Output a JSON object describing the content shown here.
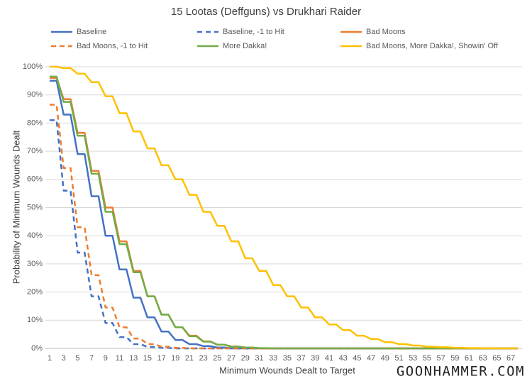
{
  "chart_data": {
    "type": "line",
    "title": "15 Lootas (Deffguns) vs Drukhari Raider",
    "x_label": "Minimum Wounds Dealt to Target",
    "y_label": "Probability of Minimum Wounds Dealt",
    "watermark": "GOONHAMMER.COM",
    "grid": true,
    "legend": "top",
    "categories": [
      "1",
      null,
      "3",
      null,
      "5",
      null,
      "7",
      null,
      "9",
      null,
      "11",
      null,
      "13",
      null,
      "15",
      null,
      "17",
      null,
      "19",
      null,
      "21",
      null,
      "23",
      null,
      "25",
      null,
      "27",
      null,
      "29",
      null,
      "31",
      null,
      "33",
      null,
      "35",
      null,
      "37",
      null,
      "39",
      null,
      "41",
      null,
      "43",
      null,
      "45",
      null,
      "47",
      null,
      "49",
      null,
      "51",
      null,
      "53",
      null,
      "55",
      null,
      "57",
      null,
      "59",
      null,
      "61",
      null,
      "63",
      null,
      "65",
      null,
      "67",
      null
    ],
    "ylim": [
      0,
      100
    ],
    "yticks": [
      {
        "value": 0,
        "label": "0%"
      },
      {
        "value": 10,
        "label": "10%"
      },
      {
        "value": 20,
        "label": "20%"
      },
      {
        "value": 30,
        "label": "30%"
      },
      {
        "value": 40,
        "label": "40%"
      },
      {
        "value": 50,
        "label": "50%"
      },
      {
        "value": 60,
        "label": "60%"
      },
      {
        "value": 70,
        "label": "70%"
      },
      {
        "value": 80,
        "label": "80%"
      },
      {
        "value": 90,
        "label": "90%"
      },
      {
        "value": 100,
        "label": "100%"
      }
    ],
    "series": [
      {
        "name": "Baseline",
        "color": "#4472c4",
        "dashed": false,
        "values": [
          95,
          95,
          83,
          83,
          69,
          69,
          54,
          54,
          40,
          40,
          28,
          28,
          18,
          18,
          11,
          11,
          6,
          6,
          3,
          3,
          1.5,
          1.5,
          0.8,
          0.8,
          0.3,
          0.3,
          0,
          0,
          0,
          0,
          0,
          0,
          0,
          0,
          0,
          0,
          0,
          0,
          0,
          0,
          0,
          0,
          0,
          0,
          0,
          0,
          0,
          0,
          0,
          0,
          0,
          0,
          0,
          0,
          0,
          0,
          0,
          0,
          0,
          0,
          0,
          0,
          0,
          0,
          0,
          0,
          0,
          0
        ]
      },
      {
        "name": "Baseline, -1 to Hit",
        "color": "#4472c4",
        "dashed": true,
        "values": [
          81,
          81,
          56,
          56,
          34,
          34,
          18.5,
          18.5,
          9,
          9,
          4,
          4,
          1.5,
          1.5,
          0.5,
          0.5,
          0.2,
          0.2,
          0,
          0,
          0,
          0,
          0,
          0,
          0,
          0,
          0,
          0,
          0,
          0,
          0,
          0,
          0,
          0,
          0,
          0,
          0,
          0,
          0,
          0,
          0,
          0,
          0,
          0,
          0,
          0,
          0,
          0,
          0,
          0,
          0,
          0,
          0,
          0,
          0,
          0,
          0,
          0,
          0,
          0,
          0,
          0,
          0,
          0,
          0,
          0,
          0,
          0
        ]
      },
      {
        "name": "Bad Moons",
        "color": "#ed7d31",
        "dashed": false,
        "values": [
          96,
          96,
          88.5,
          88.5,
          76.5,
          76.5,
          63,
          63,
          50,
          50,
          38,
          38,
          27.5,
          27.5,
          18.5,
          18.5,
          12,
          12,
          7.5,
          7.5,
          4.5,
          4.5,
          2.5,
          2.5,
          1.3,
          1.3,
          0.7,
          0.7,
          0.3,
          0.3,
          0,
          0,
          0,
          0,
          0,
          0,
          0,
          0,
          0,
          0,
          0,
          0,
          0,
          0,
          0,
          0,
          0,
          0,
          0,
          0,
          0,
          0,
          0,
          0,
          0,
          0,
          0,
          0,
          0,
          0,
          0,
          0,
          0,
          0,
          0,
          0,
          0,
          0
        ]
      },
      {
        "name": "Bad Moons, -1 to Hit",
        "color": "#ed7d31",
        "dashed": true,
        "values": [
          86.5,
          86.5,
          64,
          64,
          43,
          43,
          26,
          26,
          14.5,
          14.5,
          7.5,
          7.5,
          3.5,
          3.5,
          1.5,
          1.5,
          0.6,
          0.6,
          0.2,
          0.2,
          0,
          0,
          0,
          0,
          0,
          0,
          0,
          0,
          0,
          0,
          0,
          0,
          0,
          0,
          0,
          0,
          0,
          0,
          0,
          0,
          0,
          0,
          0,
          0,
          0,
          0,
          0,
          0,
          0,
          0,
          0,
          0,
          0,
          0,
          0,
          0,
          0,
          0,
          0,
          0,
          0,
          0,
          0,
          0,
          0,
          0,
          0,
          0
        ]
      },
      {
        "name": "More Dakka!",
        "color": "#70ad47",
        "dashed": false,
        "values": [
          96.5,
          96.5,
          87.5,
          87.5,
          75.5,
          75.5,
          62,
          62,
          48.5,
          48.5,
          37,
          37,
          27,
          27,
          18.5,
          18.5,
          12,
          12,
          7.5,
          7.5,
          4.3,
          4.3,
          2.4,
          2.4,
          1.3,
          1.3,
          0.6,
          0.6,
          0.3,
          0.3,
          0.1,
          0.1,
          0,
          0,
          0,
          0,
          0,
          0,
          0,
          0,
          0,
          0,
          0,
          0,
          0,
          0,
          0,
          0,
          0,
          0,
          0,
          0,
          0,
          0,
          0,
          0,
          0,
          0,
          0,
          0,
          0,
          0,
          0,
          0,
          0,
          0,
          0,
          0
        ]
      },
      {
        "name": "Bad Moons, More Dakka!, Showin' Off",
        "color": "#ffc000",
        "dashed": false,
        "values": [
          100,
          100,
          99.5,
          99.5,
          97.5,
          97.5,
          94.5,
          94.5,
          89.5,
          89.5,
          83.5,
          83.5,
          77,
          77,
          71,
          71,
          65,
          65,
          60,
          60,
          54.5,
          54.5,
          48.5,
          48.5,
          43.5,
          43.5,
          38,
          38,
          32,
          32,
          27.5,
          27.5,
          22.5,
          22.5,
          18.5,
          18.5,
          14.5,
          14.5,
          11,
          11,
          8.5,
          8.5,
          6.5,
          6.5,
          4.5,
          4.5,
          3.3,
          3.3,
          2.2,
          2.2,
          1.5,
          1.5,
          1,
          1,
          0.6,
          0.6,
          0.4,
          0.4,
          0.2,
          0.2,
          0.1,
          0.1,
          0.05,
          0.05,
          0,
          0,
          0,
          0
        ]
      }
    ]
  }
}
